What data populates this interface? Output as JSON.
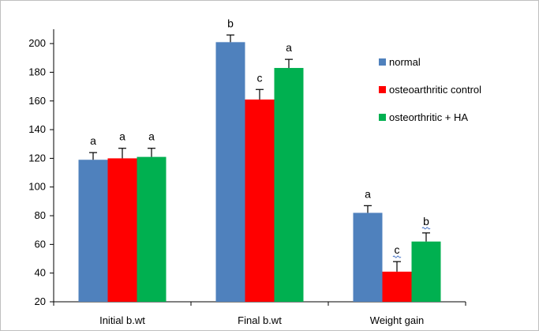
{
  "chart_data": {
    "type": "bar",
    "categories": [
      "Initial b.wt",
      "Final b.wt",
      "Weight gain"
    ],
    "series": [
      {
        "name": "normal",
        "color": "#4f81bd",
        "values": [
          119,
          201,
          82
        ],
        "errors": [
          5,
          5,
          5
        ],
        "labels": [
          "a",
          "b",
          "a"
        ],
        "label_underline": [
          false,
          false,
          false
        ]
      },
      {
        "name": "osteoarthritic control",
        "color": "#ff0000",
        "values": [
          120,
          161,
          41
        ],
        "errors": [
          7,
          7,
          7
        ],
        "labels": [
          "a",
          "c",
          "c"
        ],
        "label_underline": [
          false,
          false,
          true
        ]
      },
      {
        "name": "osteorthritic + HA",
        "color": "#00b050",
        "values": [
          121,
          183,
          62
        ],
        "errors": [
          6,
          6,
          6
        ],
        "labels": [
          "a",
          "a",
          "b"
        ],
        "label_underline": [
          false,
          false,
          true
        ]
      }
    ],
    "ylim": [
      20,
      210
    ],
    "yticks": [
      20,
      40,
      60,
      80,
      100,
      120,
      140,
      160,
      180,
      200
    ],
    "legend_position": "right",
    "grid": false,
    "xlabel": "",
    "ylabel": "",
    "title": ""
  }
}
